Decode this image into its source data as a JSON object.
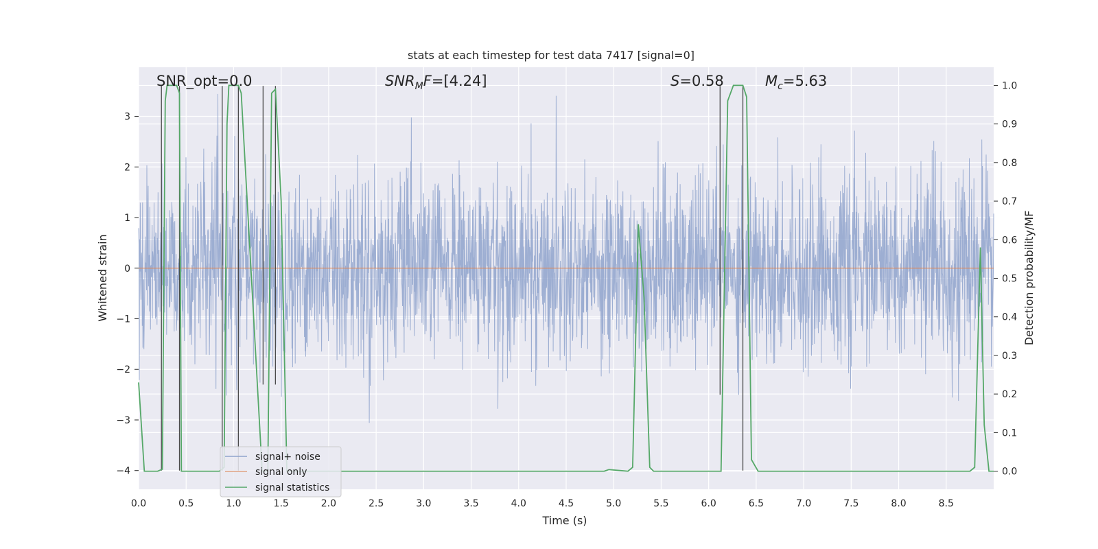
{
  "chart_data": {
    "type": "line",
    "title": "stats at each timestep for test data 7417 [signal=0]",
    "xlabel": "Time (s)",
    "ylabel_left": "Whitened strain",
    "ylabel_right": "Detection probability/MF",
    "xlim": [
      0.0,
      9.0
    ],
    "ylim_left": [
      -4.37,
      3.97
    ],
    "ylim_right": [
      -0.047,
      1.047
    ],
    "grid": true,
    "legend_position": "lower-left",
    "x_ticks": [
      "0.0",
      "0.5",
      "1.0",
      "1.5",
      "2.0",
      "2.5",
      "3.0",
      "3.5",
      "4.0",
      "4.5",
      "5.0",
      "5.5",
      "6.0",
      "6.5",
      "7.0",
      "7.5",
      "8.0",
      "8.5"
    ],
    "x_tick_values": [
      0.0,
      0.5,
      1.0,
      1.5,
      2.0,
      2.5,
      3.0,
      3.5,
      4.0,
      4.5,
      5.0,
      5.5,
      6.0,
      6.5,
      7.0,
      7.5,
      8.0,
      8.5
    ],
    "y_left_ticks": [
      "3",
      "2",
      "1",
      "0",
      "−1",
      "−2",
      "−3",
      "−4"
    ],
    "y_left_tick_values": [
      3,
      2,
      1,
      0,
      -1,
      -2,
      -3,
      -4
    ],
    "y_right_ticks": [
      "1.0",
      "0.9",
      "0.8",
      "0.7",
      "0.6",
      "0.5",
      "0.4",
      "0.3",
      "0.2",
      "0.1",
      "0.0"
    ],
    "y_right_tick_values": [
      1.0,
      0.9,
      0.8,
      0.7,
      0.6,
      0.5,
      0.4,
      0.3,
      0.2,
      0.1,
      0.0
    ],
    "annotations": {
      "snr_opt": "SNR_opt=0.0",
      "snr_mf": "[4.24]",
      "s_value": "0.58",
      "mc_value": "5.63"
    },
    "series": [
      {
        "name": "signal+ noise",
        "color": "#8fa3cc",
        "note": "whitened noise, amplitude roughly within ±1.3 with spikes to about ±3.5"
      },
      {
        "name": "signal only",
        "color": "#dd8452",
        "x": [
          0.0,
          9.0
        ],
        "values": [
          0.0,
          0.0
        ]
      },
      {
        "name": "signal statistics",
        "color": "#55a868",
        "x": [
          0.0,
          0.06,
          0.2,
          0.25,
          0.28,
          0.3,
          0.4,
          0.43,
          0.45,
          0.5,
          0.85,
          0.9,
          0.93,
          0.95,
          1.05,
          1.08,
          1.3,
          1.36,
          1.4,
          1.44,
          1.5,
          1.56,
          1.6,
          4.9,
          4.95,
          5.15,
          5.2,
          5.26,
          5.32,
          5.38,
          5.42,
          5.5,
          6.0,
          6.13,
          6.2,
          6.26,
          6.36,
          6.4,
          6.45,
          6.52,
          6.6,
          8.5,
          8.75,
          8.8,
          8.86,
          8.9,
          8.95,
          9.0
        ],
        "values": [
          0.23,
          0.0,
          0.0,
          0.005,
          0.96,
          1.0,
          1.0,
          0.98,
          0.0,
          0.0,
          0.0,
          0.01,
          0.9,
          1.0,
          1.0,
          0.98,
          0.0,
          0.0,
          0.98,
          0.99,
          0.7,
          0.0,
          0.0,
          0.0,
          0.004,
          0.0,
          0.01,
          0.64,
          0.45,
          0.01,
          0.0,
          0.0,
          0.0,
          0.0,
          0.96,
          1.0,
          1.0,
          0.97,
          0.03,
          0.0,
          0.0,
          0.0,
          0.0,
          0.01,
          0.58,
          0.12,
          0.0,
          0.0
        ]
      }
    ],
    "vertical_markers": [
      {
        "x": 0.24,
        "y_top": 3.6,
        "y_bottom": -4.0
      },
      {
        "x": 0.43,
        "y_top": 3.6,
        "y_bottom": -4.0
      },
      {
        "x": 0.88,
        "y_top": 3.6,
        "y_bottom": -4.0
      },
      {
        "x": 1.05,
        "y_top": 3.6,
        "y_bottom": -4.0
      },
      {
        "x": 1.31,
        "y_top": 3.6,
        "y_bottom": -2.3
      },
      {
        "x": 1.44,
        "y_top": 3.6,
        "y_bottom": -2.3
      },
      {
        "x": 6.12,
        "y_top": 3.6,
        "y_bottom": -2.5
      },
      {
        "x": 6.36,
        "y_top": 3.6,
        "y_bottom": -4.0
      }
    ],
    "colors": {
      "background": "#eaeaf2",
      "grid": "#ffffff",
      "marker": "#4a4a4a"
    }
  }
}
